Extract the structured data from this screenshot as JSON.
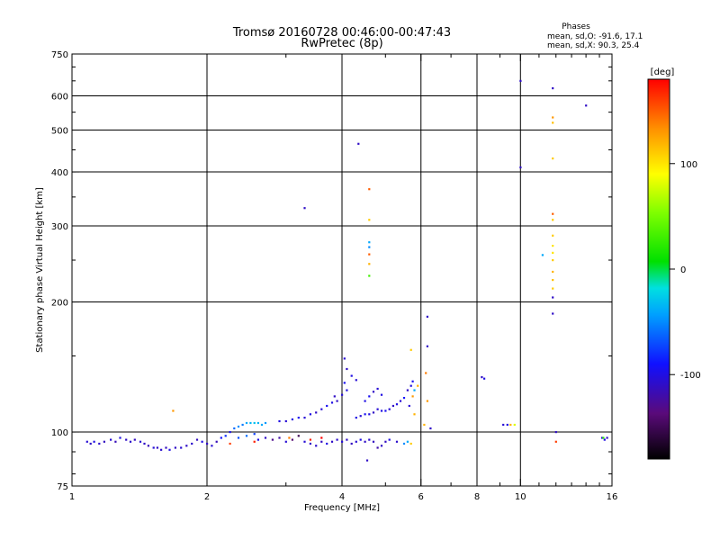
{
  "chart_data": {
    "type": "scatter",
    "title": "Tromsø 20160728 00:46:00-00:47:43",
    "subtitle": "RwPretec (8p)",
    "xlabel": "Frequency [MHz]",
    "ylabel": "Stationary phase Virtual Height [km]",
    "x_scale": "log",
    "y_scale": "log",
    "xlim": [
      1,
      16
    ],
    "ylim": [
      75,
      750
    ],
    "x_ticks": [
      1,
      2,
      4,
      6,
      8,
      10,
      16
    ],
    "x_tick_labels": [
      "1",
      "2",
      "4",
      "6",
      "8",
      "10",
      "16"
    ],
    "y_ticks": [
      75,
      100,
      200,
      300,
      400,
      500,
      600,
      750
    ],
    "y_tick_labels": [
      "75",
      "100",
      "200",
      "300",
      "400",
      "500",
      "600",
      "750"
    ],
    "grid": true,
    "colorbar": {
      "label": "[deg]",
      "range": [
        -180,
        180
      ],
      "ticks": [
        100,
        0,
        -100
      ],
      "tick_labels": [
        "100",
        "0",
        "-100"
      ]
    },
    "phases_legend": {
      "title": "Phases",
      "line1": "mean, sd,O: -91.6, 17.1",
      "line2": "mean, sd,X:  90.3, 25.4"
    },
    "points": [
      [
        1.08,
        95,
        -105
      ],
      [
        1.1,
        94,
        -110
      ],
      [
        1.12,
        95,
        -100
      ],
      [
        1.15,
        94,
        -108
      ],
      [
        1.18,
        95,
        -112
      ],
      [
        1.22,
        96,
        -105
      ],
      [
        1.25,
        95,
        -115
      ],
      [
        1.28,
        97,
        -100
      ],
      [
        1.32,
        96,
        -110
      ],
      [
        1.35,
        95,
        -108
      ],
      [
        1.38,
        96,
        -112
      ],
      [
        1.42,
        95,
        -106
      ],
      [
        1.45,
        94,
        -110
      ],
      [
        1.48,
        93,
        -115
      ],
      [
        1.52,
        92,
        -105
      ],
      [
        1.55,
        92,
        -110
      ],
      [
        1.58,
        91,
        -108
      ],
      [
        1.62,
        92,
        -112
      ],
      [
        1.65,
        91,
        -100
      ],
      [
        1.7,
        92,
        -110
      ],
      [
        1.75,
        92,
        -106
      ],
      [
        1.8,
        93,
        -110
      ],
      [
        1.85,
        94,
        -108
      ],
      [
        1.9,
        96,
        -112
      ],
      [
        1.95,
        95,
        -100
      ],
      [
        2.0,
        94,
        -110
      ],
      [
        2.05,
        93,
        -105
      ],
      [
        2.1,
        95,
        -115
      ],
      [
        2.15,
        97,
        -90
      ],
      [
        2.2,
        98,
        -80
      ],
      [
        2.25,
        100,
        -95
      ],
      [
        2.3,
        102,
        -60
      ],
      [
        2.35,
        103,
        -50
      ],
      [
        2.4,
        104,
        -55
      ],
      [
        2.45,
        105,
        -40
      ],
      [
        2.5,
        105,
        -35
      ],
      [
        2.55,
        105,
        -30
      ],
      [
        2.6,
        105,
        -35
      ],
      [
        2.65,
        104,
        -40
      ],
      [
        2.7,
        105,
        -45
      ],
      [
        2.35,
        97,
        -70
      ],
      [
        2.45,
        98,
        -60
      ],
      [
        2.55,
        99,
        -75
      ],
      [
        2.6,
        96,
        -100
      ],
      [
        2.7,
        97,
        -110
      ],
      [
        2.8,
        96,
        -130
      ],
      [
        2.9,
        97,
        -120
      ],
      [
        3.0,
        95,
        -105
      ],
      [
        3.1,
        96,
        -140
      ],
      [
        3.2,
        98,
        -150
      ],
      [
        2.9,
        106,
        -100
      ],
      [
        3.0,
        106,
        -105
      ],
      [
        3.1,
        107,
        -100
      ],
      [
        3.2,
        108,
        -95
      ],
      [
        3.3,
        108,
        -105
      ],
      [
        3.4,
        110,
        -100
      ],
      [
        3.5,
        111,
        -110
      ],
      [
        3.6,
        113,
        -105
      ],
      [
        3.7,
        115,
        -95
      ],
      [
        3.8,
        117,
        -100
      ],
      [
        3.9,
        118,
        -110
      ],
      [
        4.0,
        122,
        -105
      ],
      [
        4.05,
        130,
        -95
      ],
      [
        4.1,
        125,
        -100
      ],
      [
        3.85,
        121,
        -110
      ],
      [
        3.3,
        95,
        -105
      ],
      [
        3.4,
        94,
        -110
      ],
      [
        3.5,
        93,
        -108
      ],
      [
        3.6,
        95,
        -112
      ],
      [
        3.7,
        94,
        -100
      ],
      [
        3.8,
        95,
        -110
      ],
      [
        3.9,
        96,
        -108
      ],
      [
        4.0,
        95,
        -105
      ],
      [
        4.1,
        96,
        -110
      ],
      [
        4.2,
        94,
        -112
      ],
      [
        4.3,
        95,
        -105
      ],
      [
        4.4,
        96,
        -100
      ],
      [
        4.5,
        95,
        -110
      ],
      [
        4.6,
        96,
        -108
      ],
      [
        4.7,
        95,
        -112
      ],
      [
        4.3,
        108,
        -100
      ],
      [
        4.4,
        109,
        -105
      ],
      [
        4.5,
        110,
        -95
      ],
      [
        4.6,
        110,
        -100
      ],
      [
        4.7,
        111,
        -110
      ],
      [
        4.8,
        113,
        -105
      ],
      [
        4.9,
        112,
        -100
      ],
      [
        5.0,
        112,
        -95
      ],
      [
        5.1,
        113,
        -105
      ],
      [
        5.2,
        115,
        -110
      ],
      [
        5.3,
        116,
        -100
      ],
      [
        5.4,
        118,
        -105
      ],
      [
        5.5,
        120,
        -90
      ],
      [
        5.6,
        125,
        -110
      ],
      [
        5.7,
        128,
        -100
      ],
      [
        5.75,
        131,
        -95
      ],
      [
        5.8,
        125,
        -40
      ],
      [
        5.65,
        115,
        -105
      ],
      [
        4.5,
        118,
        -100
      ],
      [
        4.6,
        121,
        -95
      ],
      [
        4.7,
        124,
        -110
      ],
      [
        4.8,
        126,
        -105
      ],
      [
        4.9,
        122,
        -100
      ],
      [
        4.8,
        92,
        -120
      ],
      [
        4.9,
        93,
        -110
      ],
      [
        5.0,
        95,
        -112
      ],
      [
        5.1,
        96,
        -100
      ],
      [
        5.3,
        95,
        -108
      ],
      [
        5.5,
        94,
        -50
      ],
      [
        5.6,
        95,
        -40
      ],
      [
        5.7,
        94,
        110
      ],
      [
        5.8,
        110,
        120
      ],
      [
        4.05,
        148,
        -105
      ],
      [
        4.1,
        140,
        -110
      ],
      [
        4.2,
        135,
        -100
      ],
      [
        4.3,
        132,
        -105
      ],
      [
        4.55,
        86,
        -110
      ],
      [
        3.4,
        96,
        170
      ],
      [
        3.6,
        97,
        180
      ],
      [
        3.05,
        97,
        140
      ],
      [
        2.25,
        94,
        160
      ],
      [
        2.55,
        95,
        170
      ],
      [
        5.7,
        155,
        110
      ],
      [
        5.75,
        121,
        130
      ],
      [
        5.9,
        128,
        120
      ],
      [
        6.15,
        137,
        140
      ],
      [
        6.2,
        118,
        130
      ],
      [
        6.1,
        104,
        120
      ],
      [
        6.3,
        102,
        -110
      ],
      [
        6.2,
        185,
        -110
      ],
      [
        6.2,
        158,
        -110
      ],
      [
        8.2,
        134,
        -110
      ],
      [
        8.3,
        133,
        -100
      ],
      [
        9.15,
        104,
        -105
      ],
      [
        9.35,
        104,
        -100
      ],
      [
        9.5,
        104,
        120
      ],
      [
        9.7,
        104,
        80
      ],
      [
        15.2,
        97,
        -105
      ],
      [
        15.4,
        96,
        -100
      ],
      [
        15.6,
        97,
        -110
      ],
      [
        15.3,
        97,
        20
      ],
      [
        12.0,
        95,
        160
      ],
      [
        12.0,
        100,
        -110
      ],
      [
        4.6,
        365,
        150
      ],
      [
        4.6,
        310,
        110
      ],
      [
        4.6,
        275,
        -40
      ],
      [
        4.6,
        268,
        -50
      ],
      [
        4.6,
        258,
        150
      ],
      [
        4.6,
        245,
        120
      ],
      [
        4.6,
        230,
        30
      ],
      [
        4.35,
        465,
        -110
      ],
      [
        3.3,
        330,
        -110
      ],
      [
        10.0,
        650,
        -110
      ],
      [
        10.0,
        410,
        -110
      ],
      [
        11.8,
        625,
        -110
      ],
      [
        11.8,
        535,
        130
      ],
      [
        11.8,
        520,
        115
      ],
      [
        11.8,
        430,
        110
      ],
      [
        11.8,
        320,
        150
      ],
      [
        11.8,
        310,
        110
      ],
      [
        11.8,
        285,
        110
      ],
      [
        11.8,
        270,
        100
      ],
      [
        11.8,
        260,
        100
      ],
      [
        11.8,
        250,
        110
      ],
      [
        11.8,
        235,
        120
      ],
      [
        11.8,
        225,
        115
      ],
      [
        11.8,
        215,
        110
      ],
      [
        11.8,
        205,
        -110
      ],
      [
        11.8,
        188,
        -110
      ],
      [
        11.2,
        257,
        -40
      ],
      [
        14.0,
        570,
        -110
      ],
      [
        1.68,
        112,
        130
      ]
    ]
  }
}
